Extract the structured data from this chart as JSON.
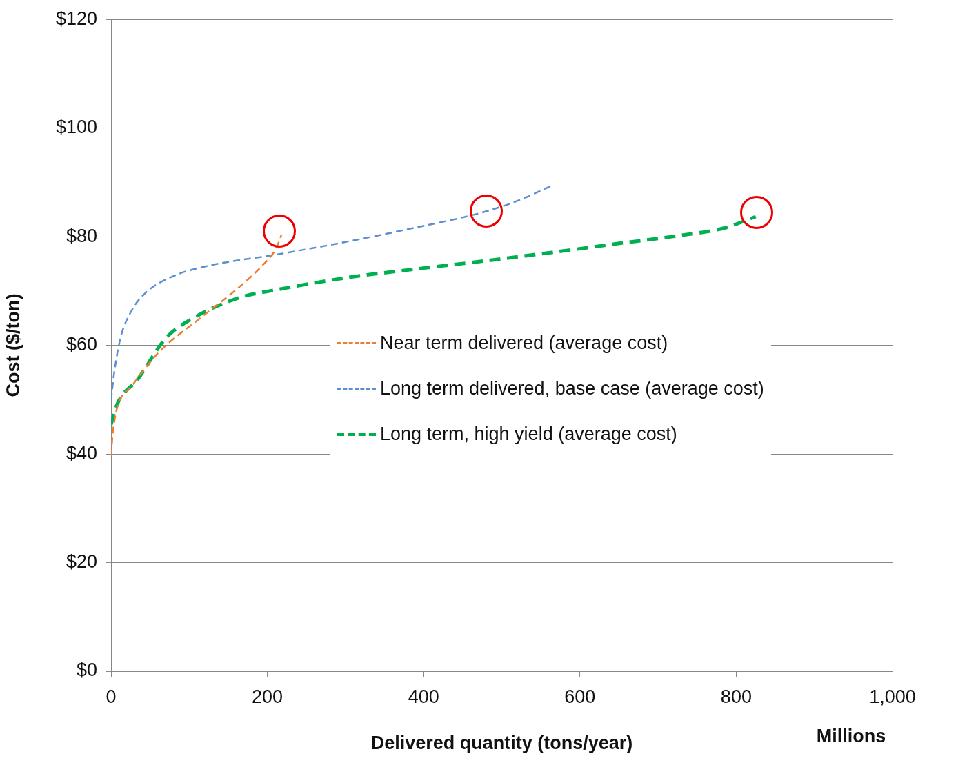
{
  "chart_data": {
    "type": "line",
    "xlabel": "Delivered quantity (tons/year)",
    "ylabel": "Cost ($/ton)",
    "annotations": [
      "Millions"
    ],
    "xlim": [
      0,
      1000
    ],
    "xticks": [
      0,
      200,
      400,
      600,
      800,
      {
        "value": 1000,
        "label": "1,000"
      }
    ],
    "ylim": [
      0,
      120
    ],
    "yticks": [
      {
        "value": 0,
        "label": "$0"
      },
      {
        "value": 20,
        "label": "$20"
      },
      {
        "value": 40,
        "label": "$40"
      },
      {
        "value": 60,
        "label": "$60"
      },
      {
        "value": 80,
        "label": "$80"
      },
      {
        "value": 100,
        "label": "$100"
      },
      {
        "value": 120,
        "label": "$120"
      }
    ],
    "grid": "y",
    "legend": "right",
    "marker": "none",
    "line_style": "dashed",
    "series": [
      {
        "name": "Near term delivered (average cost)",
        "color": "#ed7d31",
        "x": [
          0,
          2,
          8,
          26,
          61,
          114,
          158,
          193,
          211,
          218
        ],
        "values": [
          39.7,
          43.5,
          48.6,
          52.4,
          58.7,
          65,
          70,
          74.6,
          77.8,
          80.3
        ]
      },
      {
        "name": "Long term delivered, base case (average cost)",
        "color": "#5b8fd0",
        "x": [
          0,
          4,
          12,
          26,
          43,
          79,
          123,
          211,
          299,
          387,
          476,
          520,
          564
        ],
        "values": [
          49.9,
          54.9,
          61.3,
          66.3,
          69.5,
          72.7,
          74.6,
          76.7,
          79,
          81.6,
          84.5,
          86.6,
          89.4
        ]
      },
      {
        "name": "Long term, high yield (average cost)",
        "color": "#00b050",
        "x": [
          0,
          8,
          34,
          70,
          105,
          167,
          211,
          299,
          387,
          476,
          564,
          652,
          732,
          785,
          825
        ],
        "values": [
          45.4,
          49.2,
          53.7,
          61.3,
          65,
          68.9,
          70.2,
          72.4,
          74,
          75.5,
          77.1,
          78.8,
          80.3,
          81.6,
          83.7
        ]
      }
    ]
  }
}
